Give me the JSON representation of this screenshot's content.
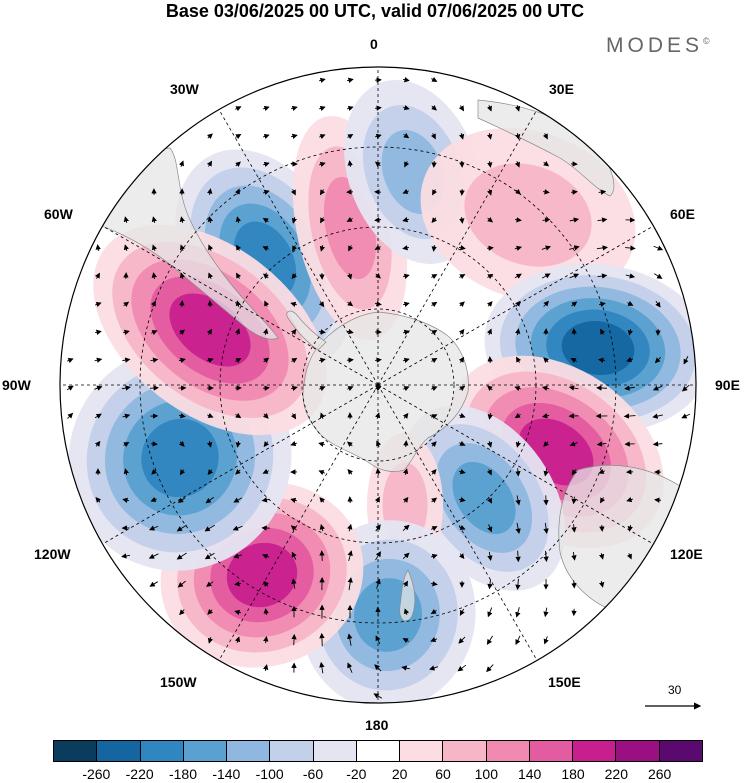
{
  "title": "Base 03/06/2025 00 UTC, valid 07/06/2025 00 UTC",
  "brand": {
    "name": "MODES",
    "mark": "©"
  },
  "longitude_labels": [
    "0",
    "30E",
    "60E",
    "90E",
    "120E",
    "150E",
    "180",
    "150W",
    "120W",
    "90W",
    "60W",
    "30W"
  ],
  "projection": "south-polar-stereographic",
  "reference_vector": {
    "value": "30"
  },
  "colorbar": {
    "ticks": [
      "-260",
      "-220",
      "-180",
      "-140",
      "-100",
      "-60",
      "-20",
      "20",
      "60",
      "100",
      "140",
      "180",
      "220",
      "260"
    ],
    "colors": [
      "#0b3c5d",
      "#1566a0",
      "#2f86c0",
      "#5aa0d0",
      "#8fb7df",
      "#c3d0ea",
      "#e5e5f2",
      "#ffffff",
      "#fbdde3",
      "#f7b6c8",
      "#f08ab0",
      "#e35ba0",
      "#c81f8e",
      "#9a0f82",
      "#5a0a6e"
    ]
  },
  "anomaly_cells": [
    {
      "name": "negative-center-30w",
      "sign": "negative",
      "peak": -200
    },
    {
      "name": "positive-center-5w",
      "sign": "positive",
      "peak": 140
    },
    {
      "name": "negative-center-15e",
      "sign": "negative",
      "peak": -120
    },
    {
      "name": "positive-center-45e",
      "sign": "positive",
      "peak": 100
    },
    {
      "name": "negative-center-85e",
      "sign": "negative",
      "peak": -240
    },
    {
      "name": "positive-center-115e",
      "sign": "positive",
      "peak": 220
    },
    {
      "name": "negative-center-150e",
      "sign": "negative",
      "peak": -180
    },
    {
      "name": "positive-center-160e",
      "sign": "positive",
      "peak": 100
    },
    {
      "name": "negative-center-180",
      "sign": "negative",
      "peak": -180
    },
    {
      "name": "positive-center-140w",
      "sign": "positive",
      "peak": 220
    },
    {
      "name": "negative-center-110w",
      "sign": "negative",
      "peak": -200
    },
    {
      "name": "positive-center-75w",
      "sign": "positive",
      "peak": 220
    }
  ]
}
